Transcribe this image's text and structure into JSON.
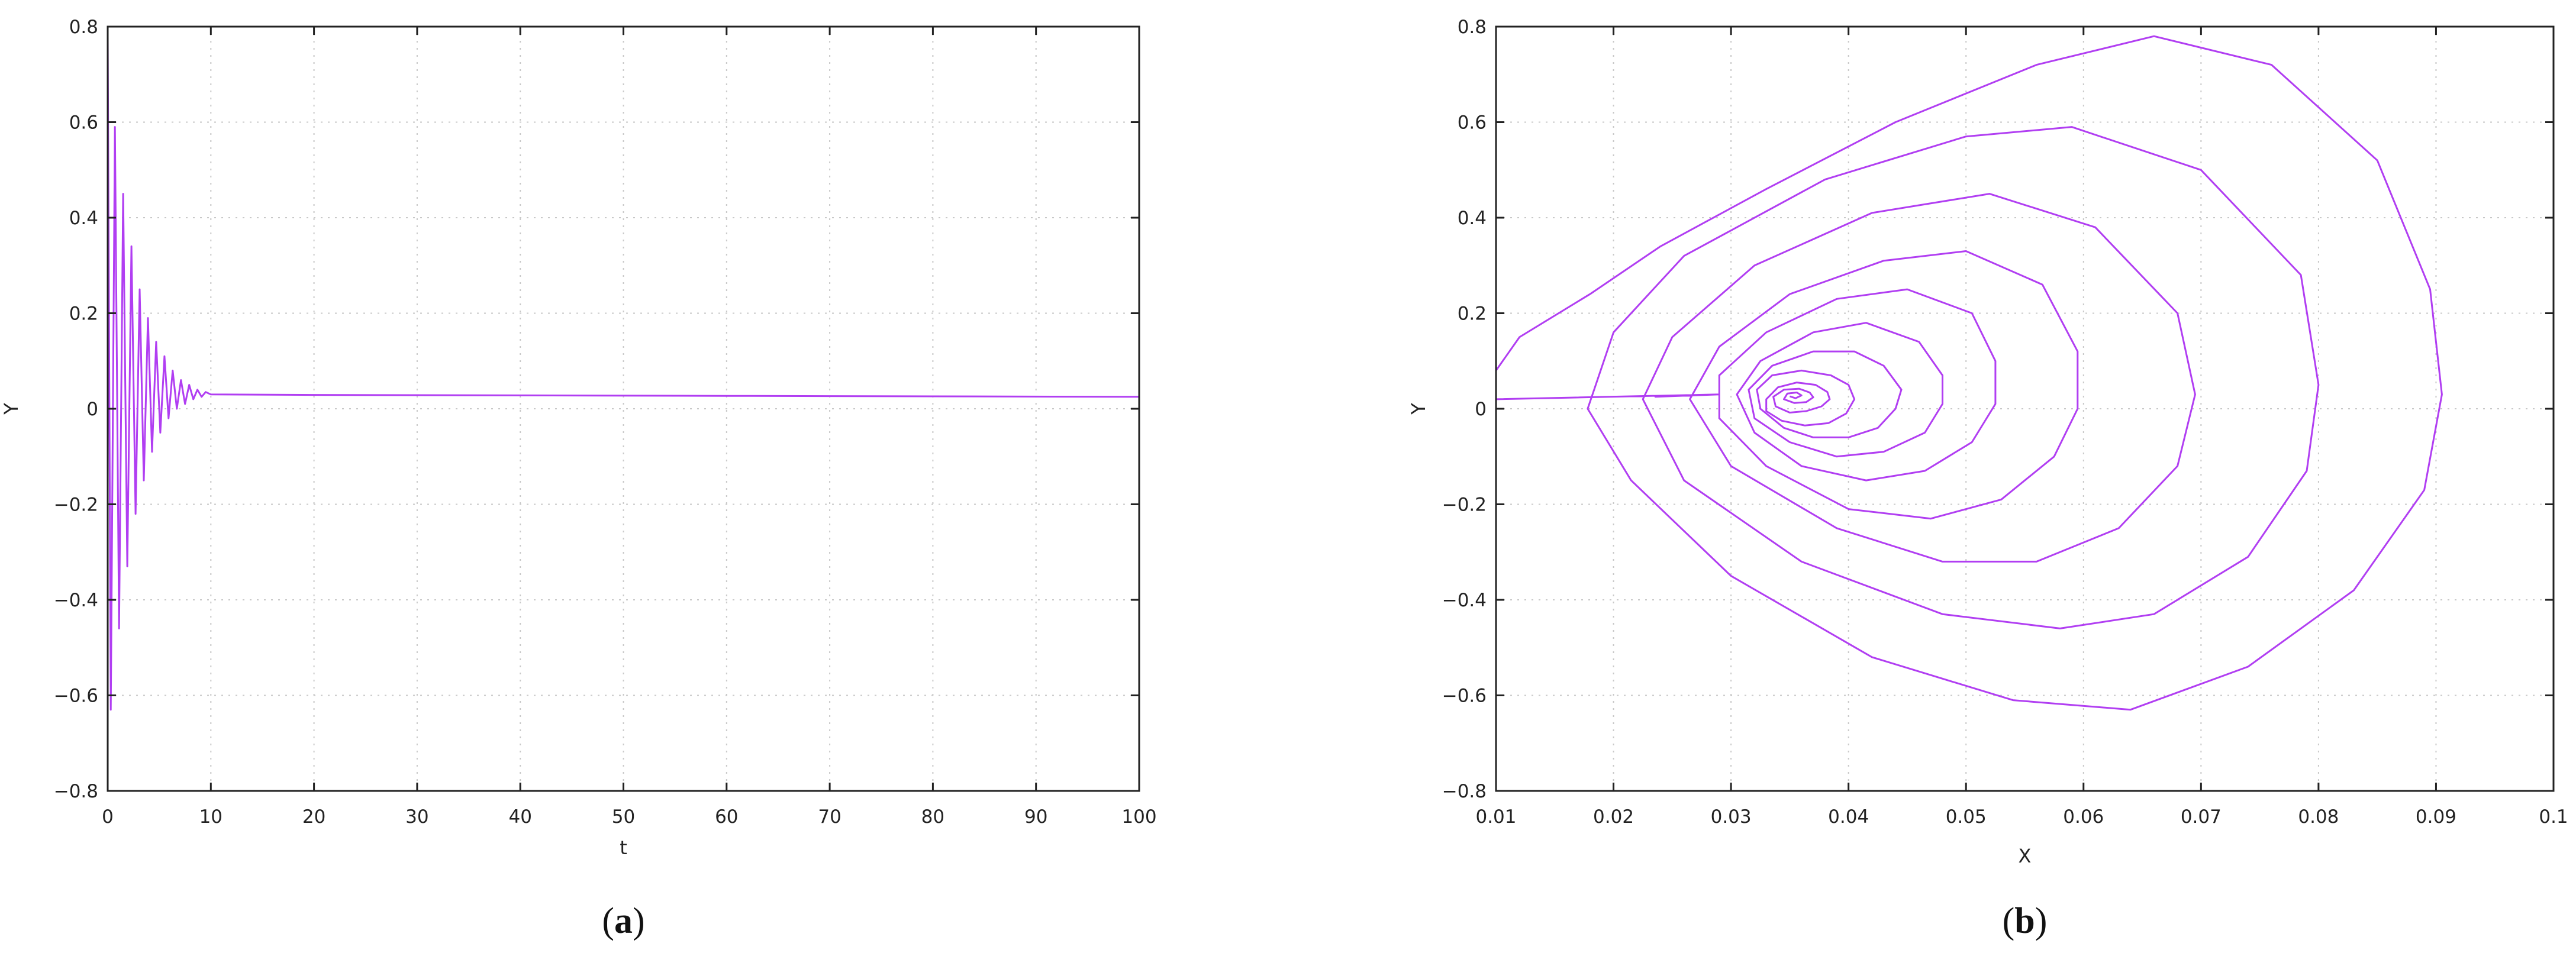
{
  "colors": {
    "series": "#b13ef2",
    "grid": "#c8c8c8",
    "frame": "#222222"
  },
  "chart_data": [
    {
      "type": "line",
      "panel": {
        "open": "(",
        "letter": "a",
        "close": ")"
      },
      "xlabel": "t",
      "ylabel": "Y",
      "xlim": [
        0,
        100
      ],
      "ylim": [
        -0.8,
        0.8
      ],
      "x_ticks": [
        {
          "v": 0,
          "label": "0"
        },
        {
          "v": 10,
          "label": "10"
        },
        {
          "v": 20,
          "label": "20"
        },
        {
          "v": 30,
          "label": "30"
        },
        {
          "v": 40,
          "label": "40"
        },
        {
          "v": 50,
          "label": "50"
        },
        {
          "v": 60,
          "label": "60"
        },
        {
          "v": 70,
          "label": "70"
        },
        {
          "v": 80,
          "label": "80"
        },
        {
          "v": 90,
          "label": "90"
        },
        {
          "v": 100,
          "label": "100"
        }
      ],
      "y_ticks": [
        {
          "v": -0.8,
          "label": "−0.8"
        },
        {
          "v": -0.6,
          "label": "−0.6"
        },
        {
          "v": -0.4,
          "label": "−0.4"
        },
        {
          "v": -0.2,
          "label": "−0.2"
        },
        {
          "v": 0,
          "label": "0"
        },
        {
          "v": 0.2,
          "label": "0.2"
        },
        {
          "v": 0.4,
          "label": "0.4"
        },
        {
          "v": 0.6,
          "label": "0.6"
        },
        {
          "v": 0.8,
          "label": "0.8"
        }
      ],
      "grid": true,
      "series": [
        {
          "points": [
            [
              0,
              0.78
            ],
            [
              0.3,
              -0.63
            ],
            [
              0.7,
              0.59
            ],
            [
              1.1,
              -0.46
            ],
            [
              1.5,
              0.45
            ],
            [
              1.9,
              -0.33
            ],
            [
              2.3,
              0.34
            ],
            [
              2.7,
              -0.22
            ],
            [
              3.1,
              0.25
            ],
            [
              3.5,
              -0.15
            ],
            [
              3.9,
              0.19
            ],
            [
              4.3,
              -0.09
            ],
            [
              4.7,
              0.14
            ],
            [
              5.1,
              -0.05
            ],
            [
              5.5,
              0.11
            ],
            [
              5.9,
              -0.02
            ],
            [
              6.3,
              0.08
            ],
            [
              6.7,
              0.0
            ],
            [
              7.1,
              0.06
            ],
            [
              7.5,
              0.01
            ],
            [
              7.9,
              0.05
            ],
            [
              8.3,
              0.02
            ],
            [
              8.7,
              0.04
            ],
            [
              9.1,
              0.025
            ],
            [
              9.5,
              0.035
            ],
            [
              10,
              0.03
            ],
            [
              20,
              0.029
            ],
            [
              40,
              0.028
            ],
            [
              60,
              0.027
            ],
            [
              80,
              0.026
            ],
            [
              100,
              0.025
            ]
          ]
        }
      ]
    },
    {
      "type": "line",
      "panel": {
        "open": "(",
        "letter": "b",
        "close": ")"
      },
      "xlabel": "X",
      "ylabel": "Y",
      "xlim": [
        0.01,
        0.1
      ],
      "ylim": [
        -0.8,
        0.8
      ],
      "x_ticks": [
        {
          "v": 0.01,
          "label": "0.01"
        },
        {
          "v": 0.02,
          "label": "0.02"
        },
        {
          "v": 0.03,
          "label": "0.03"
        },
        {
          "v": 0.04,
          "label": "0.04"
        },
        {
          "v": 0.05,
          "label": "0.05"
        },
        {
          "v": 0.06,
          "label": "0.06"
        },
        {
          "v": 0.07,
          "label": "0.07"
        },
        {
          "v": 0.08,
          "label": "0.08"
        },
        {
          "v": 0.09,
          "label": "0.09"
        },
        {
          "v": 0.1,
          "label": "0.1"
        }
      ],
      "y_ticks": [
        {
          "v": -0.8,
          "label": "−0.8"
        },
        {
          "v": -0.6,
          "label": "−0.6"
        },
        {
          "v": -0.4,
          "label": "−0.4"
        },
        {
          "v": -0.2,
          "label": "−0.2"
        },
        {
          "v": 0,
          "label": "0"
        },
        {
          "v": 0.2,
          "label": "0.2"
        },
        {
          "v": 0.4,
          "label": "0.4"
        },
        {
          "v": 0.6,
          "label": "0.6"
        },
        {
          "v": 0.8,
          "label": "0.8"
        }
      ],
      "grid": true,
      "series": [
        {
          "points": [
            [
              0.0235,
              0.025
            ],
            [
              0.029,
              0.03
            ],
            [
              0.01,
              0.02
            ],
            [
              0.01,
              0.08
            ],
            [
              0.012,
              0.15
            ],
            [
              0.018,
              0.24
            ],
            [
              0.024,
              0.34
            ],
            [
              0.033,
              0.46
            ],
            [
              0.044,
              0.6
            ],
            [
              0.056,
              0.72
            ],
            [
              0.066,
              0.78
            ],
            [
              0.076,
              0.72
            ],
            [
              0.085,
              0.52
            ],
            [
              0.0895,
              0.25
            ],
            [
              0.0905,
              0.03
            ],
            [
              0.089,
              -0.17
            ],
            [
              0.083,
              -0.38
            ],
            [
              0.074,
              -0.54
            ],
            [
              0.064,
              -0.63
            ],
            [
              0.054,
              -0.61
            ],
            [
              0.042,
              -0.52
            ],
            [
              0.03,
              -0.35
            ],
            [
              0.0215,
              -0.15
            ],
            [
              0.0178,
              0.0
            ],
            [
              0.02,
              0.16
            ],
            [
              0.026,
              0.32
            ],
            [
              0.038,
              0.48
            ],
            [
              0.05,
              0.57
            ],
            [
              0.059,
              0.59
            ],
            [
              0.07,
              0.5
            ],
            [
              0.0785,
              0.28
            ],
            [
              0.08,
              0.05
            ],
            [
              0.079,
              -0.13
            ],
            [
              0.074,
              -0.31
            ],
            [
              0.066,
              -0.43
            ],
            [
              0.058,
              -0.46
            ],
            [
              0.048,
              -0.43
            ],
            [
              0.036,
              -0.32
            ],
            [
              0.026,
              -0.15
            ],
            [
              0.0225,
              0.02
            ],
            [
              0.025,
              0.15
            ],
            [
              0.032,
              0.3
            ],
            [
              0.042,
              0.41
            ],
            [
              0.052,
              0.45
            ],
            [
              0.061,
              0.38
            ],
            [
              0.068,
              0.2
            ],
            [
              0.0695,
              0.03
            ],
            [
              0.068,
              -0.12
            ],
            [
              0.063,
              -0.25
            ],
            [
              0.056,
              -0.32
            ],
            [
              0.048,
              -0.32
            ],
            [
              0.039,
              -0.25
            ],
            [
              0.03,
              -0.12
            ],
            [
              0.0265,
              0.02
            ],
            [
              0.029,
              0.13
            ],
            [
              0.035,
              0.24
            ],
            [
              0.043,
              0.31
            ],
            [
              0.05,
              0.33
            ],
            [
              0.0565,
              0.26
            ],
            [
              0.0595,
              0.12
            ],
            [
              0.0595,
              0.0
            ],
            [
              0.0575,
              -0.1
            ],
            [
              0.053,
              -0.19
            ],
            [
              0.047,
              -0.23
            ],
            [
              0.04,
              -0.21
            ],
            [
              0.033,
              -0.12
            ],
            [
              0.029,
              -0.02
            ],
            [
              0.029,
              0.07
            ],
            [
              0.033,
              0.16
            ],
            [
              0.039,
              0.23
            ],
            [
              0.045,
              0.25
            ],
            [
              0.0505,
              0.2
            ],
            [
              0.0525,
              0.1
            ],
            [
              0.0525,
              0.01
            ],
            [
              0.0505,
              -0.07
            ],
            [
              0.0465,
              -0.13
            ],
            [
              0.0415,
              -0.15
            ],
            [
              0.036,
              -0.12
            ],
            [
              0.032,
              -0.05
            ],
            [
              0.0305,
              0.03
            ],
            [
              0.0325,
              0.1
            ],
            [
              0.037,
              0.16
            ],
            [
              0.0415,
              0.18
            ],
            [
              0.046,
              0.14
            ],
            [
              0.048,
              0.07
            ],
            [
              0.048,
              0.01
            ],
            [
              0.0465,
              -0.05
            ],
            [
              0.043,
              -0.09
            ],
            [
              0.039,
              -0.1
            ],
            [
              0.035,
              -0.07
            ],
            [
              0.032,
              -0.02
            ],
            [
              0.0315,
              0.04
            ],
            [
              0.0335,
              0.09
            ],
            [
              0.037,
              0.12
            ],
            [
              0.0405,
              0.12
            ],
            [
              0.043,
              0.09
            ],
            [
              0.0445,
              0.04
            ],
            [
              0.044,
              0.0
            ],
            [
              0.0425,
              -0.04
            ],
            [
              0.04,
              -0.06
            ],
            [
              0.037,
              -0.06
            ],
            [
              0.0345,
              -0.04
            ],
            [
              0.0325,
              0.0
            ],
            [
              0.0322,
              0.04
            ],
            [
              0.0335,
              0.07
            ],
            [
              0.036,
              0.08
            ],
            [
              0.0385,
              0.07
            ],
            [
              0.04,
              0.05
            ],
            [
              0.0405,
              0.02
            ],
            [
              0.0398,
              -0.01
            ],
            [
              0.0383,
              -0.03
            ],
            [
              0.0363,
              -0.035
            ],
            [
              0.0343,
              -0.025
            ],
            [
              0.033,
              -0.005
            ],
            [
              0.033,
              0.02
            ],
            [
              0.034,
              0.045
            ],
            [
              0.0356,
              0.055
            ],
            [
              0.0372,
              0.05
            ],
            [
              0.0382,
              0.035
            ],
            [
              0.0384,
              0.02
            ],
            [
              0.0377,
              0.005
            ],
            [
              0.0364,
              -0.005
            ],
            [
              0.035,
              -0.008
            ],
            [
              0.0338,
              0.005
            ],
            [
              0.0336,
              0.025
            ],
            [
              0.0345,
              0.04
            ],
            [
              0.0358,
              0.042
            ],
            [
              0.0367,
              0.034
            ],
            [
              0.037,
              0.024
            ],
            [
              0.0364,
              0.014
            ],
            [
              0.0354,
              0.012
            ],
            [
              0.0345,
              0.02
            ],
            [
              0.0348,
              0.032
            ],
            [
              0.0356,
              0.034
            ],
            [
              0.036,
              0.028
            ],
            [
              0.0355,
              0.022
            ],
            [
              0.035,
              0.026
            ]
          ]
        }
      ]
    }
  ]
}
